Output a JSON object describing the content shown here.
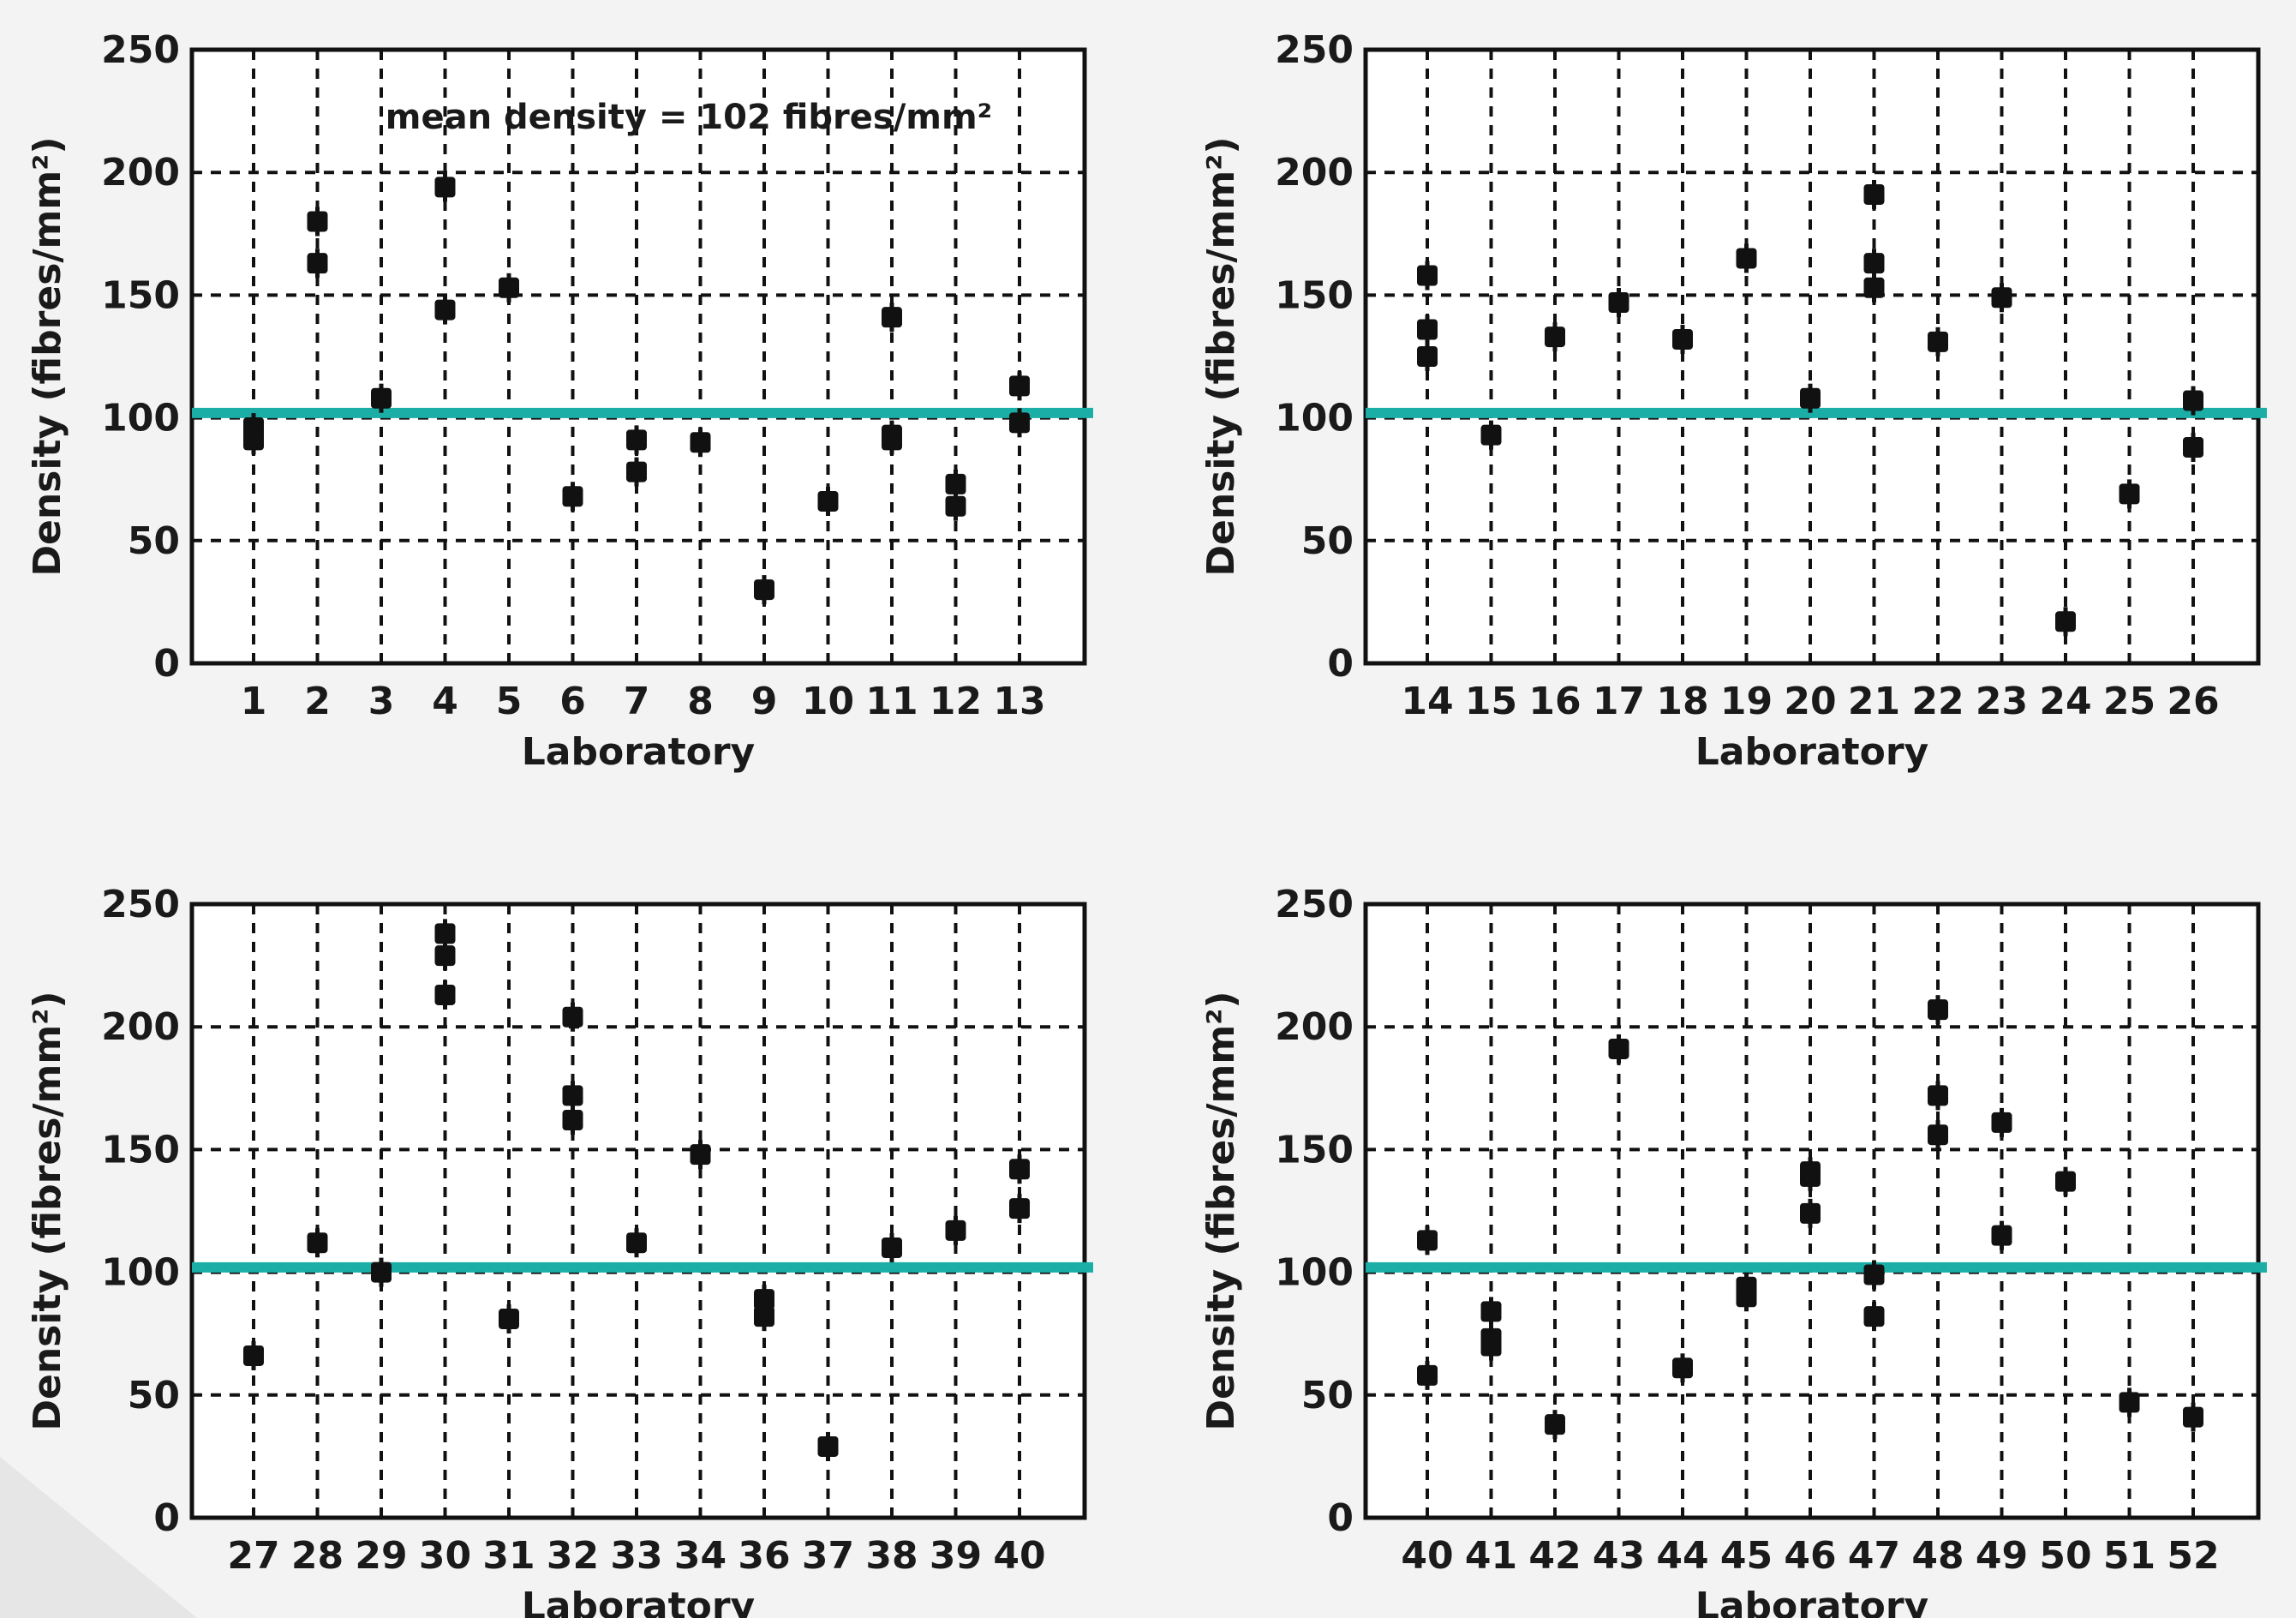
{
  "colors": {
    "marker": "#111111",
    "mean_line": "#1aaea6"
  },
  "chart_data": [
    {
      "type": "scatter",
      "xlabel": "Laboratory",
      "ylabel": "Density (fibres/mm²)",
      "ylim": [
        0,
        250
      ],
      "yticks": [
        0,
        50,
        100,
        150,
        200,
        250
      ],
      "grid": true,
      "mean_line": 102,
      "annotation": "mean density = 102 fibres/mm²",
      "categories": [
        "1",
        "2",
        "3",
        "4",
        "5",
        "6",
        "7",
        "8",
        "9",
        "10",
        "11",
        "12",
        "13"
      ],
      "points": [
        {
          "x": "1",
          "y": 96
        },
        {
          "x": "1",
          "y": 91
        },
        {
          "x": "2",
          "y": 180
        },
        {
          "x": "2",
          "y": 163
        },
        {
          "x": "3",
          "y": 108
        },
        {
          "x": "4",
          "y": 194
        },
        {
          "x": "4",
          "y": 144
        },
        {
          "x": "5",
          "y": 153
        },
        {
          "x": "6",
          "y": 68
        },
        {
          "x": "7",
          "y": 91
        },
        {
          "x": "7",
          "y": 78
        },
        {
          "x": "8",
          "y": 90
        },
        {
          "x": "9",
          "y": 30
        },
        {
          "x": "10",
          "y": 66
        },
        {
          "x": "11",
          "y": 141
        },
        {
          "x": "11",
          "y": 93
        },
        {
          "x": "11",
          "y": 91
        },
        {
          "x": "12",
          "y": 73
        },
        {
          "x": "12",
          "y": 64
        },
        {
          "x": "13",
          "y": 113
        },
        {
          "x": "13",
          "y": 98
        }
      ]
    },
    {
      "type": "scatter",
      "xlabel": "Laboratory",
      "ylabel": "Density (fibres/mm²)",
      "ylim": [
        0,
        250
      ],
      "yticks": [
        0,
        50,
        100,
        150,
        200,
        250
      ],
      "grid": true,
      "mean_line": 102,
      "categories": [
        "14",
        "15",
        "16",
        "17",
        "18",
        "19",
        "20",
        "21",
        "22",
        "23",
        "24",
        "25",
        "26"
      ],
      "points": [
        {
          "x": "14",
          "y": 158
        },
        {
          "x": "14",
          "y": 136
        },
        {
          "x": "14",
          "y": 125
        },
        {
          "x": "15",
          "y": 93
        },
        {
          "x": "16",
          "y": 133
        },
        {
          "x": "17",
          "y": 147
        },
        {
          "x": "18",
          "y": 132
        },
        {
          "x": "19",
          "y": 165
        },
        {
          "x": "20",
          "y": 108
        },
        {
          "x": "21",
          "y": 191
        },
        {
          "x": "21",
          "y": 163
        },
        {
          "x": "21",
          "y": 153
        },
        {
          "x": "22",
          "y": 131
        },
        {
          "x": "23",
          "y": 149
        },
        {
          "x": "24",
          "y": 17
        },
        {
          "x": "25",
          "y": 69
        },
        {
          "x": "26",
          "y": 107
        },
        {
          "x": "26",
          "y": 88
        }
      ]
    },
    {
      "type": "scatter",
      "xlabel": "Laboratory",
      "ylabel": "Density (fibres/mm²)",
      "ylim": [
        0,
        250
      ],
      "yticks": [
        0,
        50,
        100,
        150,
        200,
        250
      ],
      "grid": true,
      "mean_line": 102,
      "categories": [
        "27",
        "28",
        "29",
        "30",
        "31",
        "32",
        "33",
        "34",
        "36",
        "37",
        "38",
        "39",
        "40"
      ],
      "points": [
        {
          "x": "27",
          "y": 66
        },
        {
          "x": "28",
          "y": 112
        },
        {
          "x": "29",
          "y": 100
        },
        {
          "x": "30",
          "y": 238
        },
        {
          "x": "30",
          "y": 229
        },
        {
          "x": "30",
          "y": 213
        },
        {
          "x": "31",
          "y": 81
        },
        {
          "x": "32",
          "y": 204
        },
        {
          "x": "32",
          "y": 172
        },
        {
          "x": "32",
          "y": 162
        },
        {
          "x": "33",
          "y": 112
        },
        {
          "x": "34",
          "y": 148
        },
        {
          "x": "36",
          "y": 89
        },
        {
          "x": "36",
          "y": 82
        },
        {
          "x": "37",
          "y": 29
        },
        {
          "x": "38",
          "y": 110
        },
        {
          "x": "39",
          "y": 117
        },
        {
          "x": "40",
          "y": 142
        },
        {
          "x": "40",
          "y": 126
        }
      ]
    },
    {
      "type": "scatter",
      "xlabel": "Laboratory",
      "ylabel": "Density (fibres/mm²)",
      "ylim": [
        0,
        250
      ],
      "yticks": [
        0,
        50,
        100,
        150,
        200,
        250
      ],
      "grid": true,
      "mean_line": 102,
      "categories": [
        "40",
        "41",
        "42",
        "43",
        "44",
        "45",
        "46",
        "47",
        "48",
        "49",
        "50",
        "51",
        "52"
      ],
      "points": [
        {
          "x": "40",
          "y": 113
        },
        {
          "x": "40",
          "y": 58
        },
        {
          "x": "41",
          "y": 84
        },
        {
          "x": "41",
          "y": 73
        },
        {
          "x": "41",
          "y": 70
        },
        {
          "x": "42",
          "y": 38
        },
        {
          "x": "43",
          "y": 191
        },
        {
          "x": "44",
          "y": 61
        },
        {
          "x": "45",
          "y": 94
        },
        {
          "x": "45",
          "y": 90
        },
        {
          "x": "46",
          "y": 141
        },
        {
          "x": "46",
          "y": 139
        },
        {
          "x": "46",
          "y": 124
        },
        {
          "x": "47",
          "y": 99
        },
        {
          "x": "47",
          "y": 82
        },
        {
          "x": "48",
          "y": 207
        },
        {
          "x": "48",
          "y": 172
        },
        {
          "x": "48",
          "y": 156
        },
        {
          "x": "49",
          "y": 161
        },
        {
          "x": "49",
          "y": 115
        },
        {
          "x": "50",
          "y": 137
        },
        {
          "x": "51",
          "y": 47
        },
        {
          "x": "52",
          "y": 41
        }
      ]
    }
  ]
}
